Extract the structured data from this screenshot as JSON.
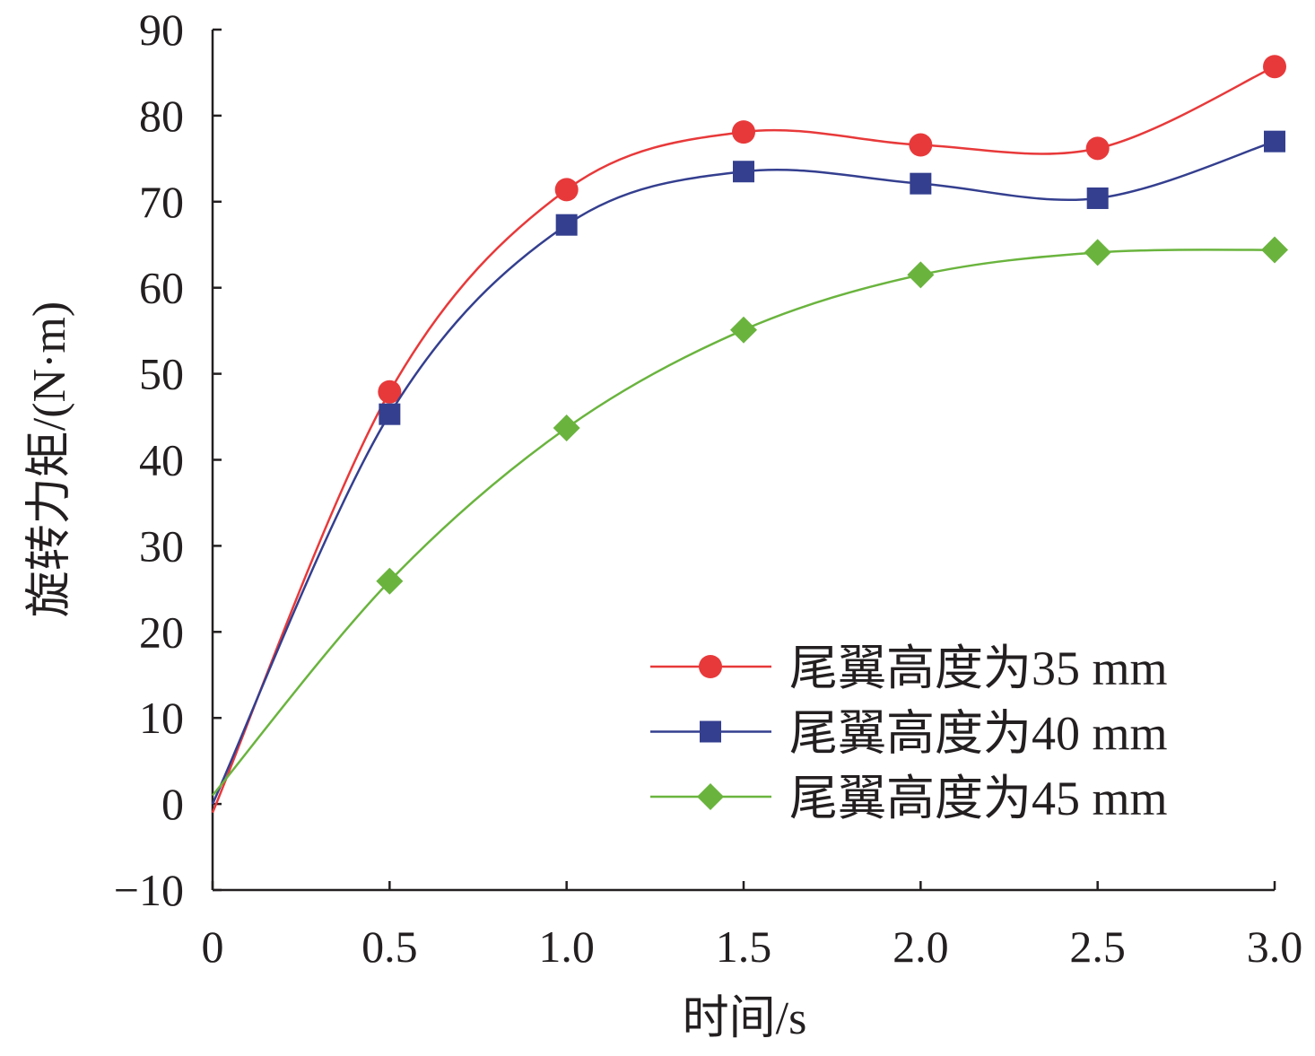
{
  "chart_data": {
    "type": "line",
    "title": "",
    "xlabel": "时间/s",
    "ylabel": "旋转力矩/(N·m)",
    "xlim": [
      0,
      3.0
    ],
    "ylim": [
      -10,
      90
    ],
    "x_ticks": [
      "0",
      "0.5",
      "1.0",
      "1.5",
      "2.0",
      "2.5",
      "3.0"
    ],
    "x_tick_values": [
      0,
      0.5,
      1.0,
      1.5,
      2.0,
      2.5,
      3.0
    ],
    "y_ticks": [
      "−10",
      "0",
      "10",
      "20",
      "30",
      "40",
      "50",
      "60",
      "70",
      "80",
      "90"
    ],
    "y_tick_values": [
      -10,
      0,
      10,
      20,
      30,
      40,
      50,
      60,
      70,
      80,
      90
    ],
    "grid": false,
    "legend_position": "bottom-right",
    "x": [
      0,
      0.5,
      1.0,
      1.5,
      2.0,
      2.5,
      3.0
    ],
    "series": [
      {
        "name": "尾翼高度为35 mm",
        "color": "#e8393a",
        "marker": "circle",
        "values": [
          -1.0,
          47.9,
          71.4,
          78.1,
          76.6,
          76.2,
          85.7
        ],
        "show_first_marker": false
      },
      {
        "name": "尾翼高度为40 mm",
        "color": "#343f8f",
        "marker": "square",
        "values": [
          0.0,
          45.3,
          67.3,
          73.5,
          72.1,
          70.4,
          77.0
        ],
        "show_first_marker": false
      },
      {
        "name": "尾翼高度为45 mm",
        "color": "#6ab43e",
        "marker": "diamond",
        "values": [
          1.0,
          25.9,
          43.7,
          55.1,
          61.5,
          64.1,
          64.4
        ],
        "show_first_marker": false
      }
    ]
  }
}
